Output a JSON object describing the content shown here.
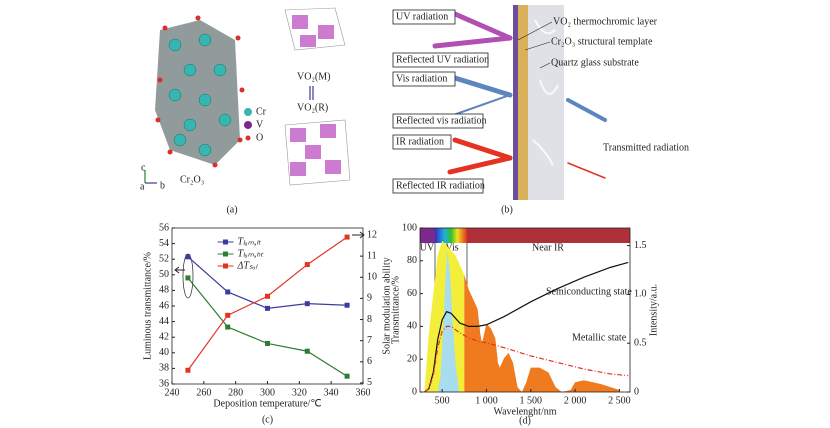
{
  "panels": {
    "a": {
      "legend": [
        "Cr",
        "V",
        "O"
      ],
      "cr2o3": "Cr₂O₃",
      "vo2m": "VO₂(M)",
      "vo2r": "VO₂(R)",
      "axes": [
        "a",
        "b",
        "c"
      ],
      "label": "(a)"
    },
    "b": {
      "boxes": [
        "UV radiation",
        "Reflected UV radiation",
        "Vis radiation",
        "Reflected vis radiation",
        "IR radiation",
        "Reflected IR radiation",
        "Transmitted radiation"
      ],
      "layers": [
        "VO₂ thermochromic layer",
        "Cr₂O₃ structural template",
        "Quartz glass substrate"
      ],
      "label": "(b)"
    }
  },
  "chart_data": [
    {
      "type": "line",
      "xlabel": "Deposition temperature/℃",
      "ylabel": "Luminous transmittance/%",
      "y2label": "Solar modulation ability",
      "caption": "(c)",
      "x": [
        250,
        275,
        300,
        325,
        350
      ],
      "xlim": [
        240,
        360
      ],
      "xticks": [
        240,
        260,
        280,
        300,
        320,
        340,
        360
      ],
      "ylim": [
        36,
        56
      ],
      "yticks": [
        36,
        38,
        40,
        42,
        44,
        46,
        48,
        50,
        52,
        54,
        56
      ],
      "y2lim": [
        4.95,
        12.33
      ],
      "y2ticks": [
        5,
        6,
        7,
        8,
        9,
        10,
        11,
        12
      ],
      "legend": "upper center",
      "series": [
        {
          "name": "Tₗᵤₘ,ₗₜ",
          "color": "#3c3ca0",
          "marker": "square",
          "values": [
            52.3,
            47.8,
            45.7,
            46.3,
            46.1
          ]
        },
        {
          "name": "Tₗᵤₘ,ₕₜ",
          "color": "#2e7d32",
          "marker": "square",
          "values": [
            49.6,
            43.3,
            41.2,
            40.2,
            37.0
          ]
        },
        {
          "name": "ΔTₛₒₗ",
          "color": "#e53322",
          "marker": "square",
          "axis": "y2",
          "values": [
            5.6,
            8.2,
            9.1,
            10.6,
            11.9
          ]
        }
      ]
    },
    {
      "type": "line",
      "xlabel": "Wavelenght/nm",
      "ylabel": "Transmittance/%",
      "y2label": "Intensity/a.u.",
      "caption": "(d)",
      "bands": [
        "UV",
        "Vis",
        "Near IR"
      ],
      "annotations": [
        "Semiconducting state",
        "Metallic state"
      ],
      "xlim": [
        250,
        2620
      ],
      "xticks": [
        500,
        {
          "value": 1000,
          "label": "1 000"
        },
        {
          "value": 1500,
          "label": "1 500"
        },
        {
          "value": 2000,
          "label": "2 000"
        },
        {
          "value": 2500,
          "label": "2 500"
        }
      ],
      "ylim": [
        0,
        100
      ],
      "yticks": [
        0,
        20,
        40,
        60,
        80,
        100
      ],
      "y2lim": [
        0,
        1.68
      ],
      "y2ticks": [
        0,
        0.5,
        {
          "value": 1,
          "label": "1.0"
        },
        1.5
      ],
      "series": [
        {
          "color": "#f3ee3a",
          "fill": true,
          "axis": "y2",
          "x": [
            300,
            350,
            400,
            450,
            500,
            550,
            600,
            650,
            700,
            750
          ],
          "values": [
            0,
            0.6,
            1.0,
            1.4,
            1.55,
            1.5,
            1.45,
            1.4,
            1.3,
            1.2
          ]
        },
        {
          "color": "#f07a1e",
          "fill": true,
          "axis": "y2",
          "x": [
            750,
            800,
            850,
            900,
            930,
            950,
            1000,
            1050,
            1100,
            1130,
            1150,
            1200,
            1250,
            1300,
            1350,
            1400,
            1450,
            1500,
            1600,
            1700,
            1780,
            1850,
            1950,
            2000,
            2100,
            2200,
            2300,
            2400,
            2500
          ],
          "values": [
            1.2,
            1.05,
            0.95,
            0.85,
            0.6,
            0.5,
            0.7,
            0.65,
            0.55,
            0.3,
            0.25,
            0.35,
            0.4,
            0.3,
            0.05,
            0,
            0.1,
            0.25,
            0.25,
            0.2,
            0.05,
            0,
            0.02,
            0.1,
            0.12,
            0.1,
            0.08,
            0.05,
            0.02
          ]
        },
        {
          "color": "#a8dcef",
          "fill": true,
          "axis": "y2",
          "x": [
            450,
            480,
            510,
            540,
            560,
            590,
            620,
            650,
            690
          ],
          "values": [
            0,
            0.15,
            0.6,
            1.2,
            1.45,
            1.2,
            0.7,
            0.3,
            0
          ]
        },
        {
          "color": "#111111",
          "x": [
            300,
            350,
            400,
            450,
            500,
            550,
            600,
            650,
            700,
            800,
            900,
            1000,
            1200,
            1500,
            1800,
            2100,
            2400,
            2600
          ],
          "values": [
            0,
            2,
            12,
            32,
            44,
            49,
            48,
            45,
            42,
            40,
            40,
            41,
            46,
            55,
            63,
            70,
            76,
            79
          ]
        },
        {
          "color": "#e53322",
          "dash": true,
          "x": [
            300,
            350,
            400,
            450,
            500,
            550,
            600,
            650,
            700,
            800,
            900,
            1000,
            1200,
            1500,
            1800,
            2100,
            2400,
            2600
          ],
          "values": [
            0,
            2,
            10,
            27,
            37,
            40,
            40,
            38,
            36,
            33,
            31,
            30,
            27,
            22,
            18,
            14,
            11,
            10
          ]
        }
      ]
    }
  ]
}
